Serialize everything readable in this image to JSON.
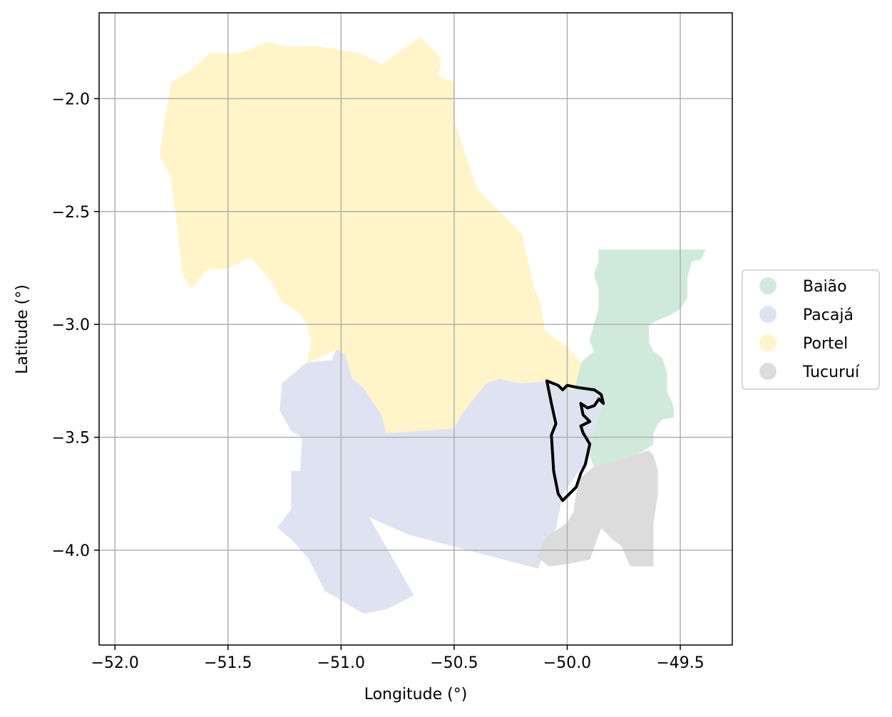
{
  "chart_data": {
    "type": "map",
    "xlabel": "Longitude (°)",
    "ylabel": "Latitude (°)",
    "xlim": [
      -52.07,
      -49.27
    ],
    "ylim": [
      -4.42,
      -1.62
    ],
    "x_ticks": [
      -52.0,
      -51.5,
      -51.0,
      -50.5,
      -50.0,
      -49.5
    ],
    "x_tick_labels": [
      "−52.0",
      "−51.5",
      "−51.0",
      "−50.5",
      "−50.0",
      "−49.5"
    ],
    "y_ticks": [
      -2.0,
      -2.5,
      -3.0,
      -3.5,
      -4.0
    ],
    "y_tick_labels": [
      "−2.0",
      "−2.5",
      "−3.0",
      "−3.5",
      "−4.0"
    ],
    "grid": true,
    "legend_position": "right",
    "regions": [
      {
        "name": "Baião",
        "color": "#cfeadb",
        "polygon": [
          [
            -49.86,
            -2.67
          ],
          [
            -49.39,
            -2.67
          ],
          [
            -49.41,
            -2.71
          ],
          [
            -49.45,
            -2.72
          ],
          [
            -49.47,
            -2.79
          ],
          [
            -49.47,
            -2.88
          ],
          [
            -49.5,
            -2.93
          ],
          [
            -49.55,
            -2.96
          ],
          [
            -49.6,
            -2.98
          ],
          [
            -49.64,
            -3.0
          ],
          [
            -49.64,
            -3.08
          ],
          [
            -49.62,
            -3.12
          ],
          [
            -49.58,
            -3.15
          ],
          [
            -49.56,
            -3.22
          ],
          [
            -49.56,
            -3.3
          ],
          [
            -49.54,
            -3.34
          ],
          [
            -49.53,
            -3.37
          ],
          [
            -49.53,
            -3.41
          ],
          [
            -49.58,
            -3.42
          ],
          [
            -49.6,
            -3.44
          ],
          [
            -49.62,
            -3.48
          ],
          [
            -49.62,
            -3.53
          ],
          [
            -49.65,
            -3.55
          ],
          [
            -49.7,
            -3.58
          ],
          [
            -49.8,
            -3.61
          ],
          [
            -49.88,
            -3.63
          ],
          [
            -49.9,
            -3.58
          ],
          [
            -49.88,
            -3.45
          ],
          [
            -49.84,
            -3.35
          ],
          [
            -49.87,
            -3.31
          ],
          [
            -49.97,
            -3.29
          ],
          [
            -49.94,
            -3.17
          ],
          [
            -49.88,
            -3.12
          ],
          [
            -49.9,
            -3.07
          ],
          [
            -49.88,
            -3.0
          ],
          [
            -49.86,
            -2.93
          ],
          [
            -49.86,
            -2.84
          ],
          [
            -49.88,
            -2.78
          ],
          [
            -49.86,
            -2.72
          ]
        ]
      },
      {
        "name": "Pacajá",
        "color": "#dfe3f1",
        "polygon": [
          [
            -51.04,
            -3.16
          ],
          [
            -51.02,
            -3.11
          ],
          [
            -50.98,
            -3.13
          ],
          [
            -50.95,
            -3.24
          ],
          [
            -50.9,
            -3.28
          ],
          [
            -50.86,
            -3.34
          ],
          [
            -50.82,
            -3.4
          ],
          [
            -50.8,
            -3.48
          ],
          [
            -50.5,
            -3.46
          ],
          [
            -50.47,
            -3.4
          ],
          [
            -50.43,
            -3.35
          ],
          [
            -50.36,
            -3.26
          ],
          [
            -50.3,
            -3.24
          ],
          [
            -50.2,
            -3.26
          ],
          [
            -50.1,
            -3.25
          ],
          [
            -49.97,
            -3.29
          ],
          [
            -49.87,
            -3.31
          ],
          [
            -49.84,
            -3.35
          ],
          [
            -49.88,
            -3.45
          ],
          [
            -49.9,
            -3.58
          ],
          [
            -49.95,
            -3.65
          ],
          [
            -50.02,
            -3.75
          ],
          [
            -50.05,
            -3.9
          ],
          [
            -50.1,
            -4.0
          ],
          [
            -50.13,
            -4.08
          ],
          [
            -50.7,
            -3.93
          ],
          [
            -50.88,
            -3.85
          ],
          [
            -50.68,
            -4.2
          ],
          [
            -50.8,
            -4.26
          ],
          [
            -50.9,
            -4.28
          ],
          [
            -51.0,
            -4.22
          ],
          [
            -51.07,
            -4.18
          ],
          [
            -51.14,
            -4.04
          ],
          [
            -51.22,
            -3.95
          ],
          [
            -51.28,
            -3.9
          ],
          [
            -51.22,
            -3.82
          ],
          [
            -51.22,
            -3.65
          ],
          [
            -51.18,
            -3.65
          ],
          [
            -51.17,
            -3.5
          ],
          [
            -51.22,
            -3.47
          ],
          [
            -51.27,
            -3.38
          ],
          [
            -51.26,
            -3.26
          ],
          [
            -51.21,
            -3.22
          ],
          [
            -51.15,
            -3.17
          ]
        ]
      },
      {
        "name": "Portel",
        "color": "#fff5c9",
        "polygon": [
          [
            -51.25,
            -1.77
          ],
          [
            -51.32,
            -1.75
          ],
          [
            -51.45,
            -1.8
          ],
          [
            -51.58,
            -1.8
          ],
          [
            -51.67,
            -1.88
          ],
          [
            -51.75,
            -1.93
          ],
          [
            -51.78,
            -2.1
          ],
          [
            -51.8,
            -2.25
          ],
          [
            -51.75,
            -2.35
          ],
          [
            -51.72,
            -2.6
          ],
          [
            -51.7,
            -2.78
          ],
          [
            -51.66,
            -2.84
          ],
          [
            -51.6,
            -2.76
          ],
          [
            -51.5,
            -2.75
          ],
          [
            -51.4,
            -2.7
          ],
          [
            -51.3,
            -2.82
          ],
          [
            -51.26,
            -2.9
          ],
          [
            -51.18,
            -2.95
          ],
          [
            -51.15,
            -3.0
          ],
          [
            -51.13,
            -3.08
          ],
          [
            -51.15,
            -3.17
          ],
          [
            -51.02,
            -3.11
          ],
          [
            -50.98,
            -3.13
          ],
          [
            -50.95,
            -3.24
          ],
          [
            -50.9,
            -3.28
          ],
          [
            -50.86,
            -3.34
          ],
          [
            -50.82,
            -3.4
          ],
          [
            -50.8,
            -3.48
          ],
          [
            -50.5,
            -3.46
          ],
          [
            -50.47,
            -3.4
          ],
          [
            -50.43,
            -3.35
          ],
          [
            -50.36,
            -3.26
          ],
          [
            -50.3,
            -3.24
          ],
          [
            -50.2,
            -3.26
          ],
          [
            -50.1,
            -3.25
          ],
          [
            -49.97,
            -3.29
          ],
          [
            -49.94,
            -3.17
          ],
          [
            -50.0,
            -3.1
          ],
          [
            -50.1,
            -3.03
          ],
          [
            -50.12,
            -2.9
          ],
          [
            -50.15,
            -2.83
          ],
          [
            -50.18,
            -2.7
          ],
          [
            -50.2,
            -2.6
          ],
          [
            -50.28,
            -2.52
          ],
          [
            -50.4,
            -2.4
          ],
          [
            -50.45,
            -2.25
          ],
          [
            -50.5,
            -2.1
          ],
          [
            -50.5,
            -1.93
          ],
          [
            -50.57,
            -1.9
          ],
          [
            -50.56,
            -1.82
          ],
          [
            -50.65,
            -1.73
          ],
          [
            -50.75,
            -1.8
          ],
          [
            -50.82,
            -1.85
          ],
          [
            -50.92,
            -1.8
          ],
          [
            -51.1,
            -1.77
          ]
        ]
      },
      {
        "name": "Tucuruí",
        "color": "#dcdcdc",
        "polygon": [
          [
            -49.88,
            -3.63
          ],
          [
            -49.8,
            -3.61
          ],
          [
            -49.7,
            -3.58
          ],
          [
            -49.64,
            -3.56
          ],
          [
            -49.62,
            -3.58
          ],
          [
            -49.6,
            -3.65
          ],
          [
            -49.6,
            -3.75
          ],
          [
            -49.62,
            -3.88
          ],
          [
            -49.62,
            -4.07
          ],
          [
            -49.72,
            -4.07
          ],
          [
            -49.76,
            -3.98
          ],
          [
            -49.8,
            -3.95
          ],
          [
            -49.85,
            -3.9
          ],
          [
            -49.88,
            -3.98
          ],
          [
            -49.9,
            -4.04
          ],
          [
            -50.0,
            -4.06
          ],
          [
            -50.08,
            -4.07
          ],
          [
            -50.13,
            -4.03
          ],
          [
            -50.1,
            -3.95
          ],
          [
            -50.0,
            -3.88
          ],
          [
            -49.97,
            -3.83
          ],
          [
            -49.96,
            -3.75
          ],
          [
            -49.94,
            -3.68
          ]
        ]
      }
    ],
    "outline_path": [
      [
        -50.09,
        -3.25
      ],
      [
        -50.04,
        -3.27
      ],
      [
        -50.02,
        -3.29
      ],
      [
        -50.0,
        -3.27
      ],
      [
        -49.95,
        -3.28
      ],
      [
        -49.88,
        -3.29
      ],
      [
        -49.85,
        -3.31
      ],
      [
        -49.84,
        -3.35
      ],
      [
        -49.86,
        -3.33
      ],
      [
        -49.88,
        -3.36
      ],
      [
        -49.91,
        -3.37
      ],
      [
        -49.94,
        -3.35
      ],
      [
        -49.93,
        -3.4
      ],
      [
        -49.9,
        -3.43
      ],
      [
        -49.94,
        -3.45
      ],
      [
        -49.93,
        -3.48
      ],
      [
        -49.9,
        -3.53
      ],
      [
        -49.92,
        -3.62
      ],
      [
        -49.94,
        -3.66
      ],
      [
        -49.96,
        -3.72
      ],
      [
        -50.02,
        -3.78
      ],
      [
        -50.04,
        -3.75
      ],
      [
        -50.06,
        -3.65
      ],
      [
        -50.07,
        -3.49
      ],
      [
        -50.05,
        -3.44
      ],
      [
        -50.07,
        -3.35
      ],
      [
        -50.09,
        -3.25
      ]
    ],
    "legend": [
      {
        "label": "Baião",
        "color": "#cfeadb"
      },
      {
        "label": "Pacajá",
        "color": "#dfe3f1"
      },
      {
        "label": "Portel",
        "color": "#fff5c9"
      },
      {
        "label": "Tucuruí",
        "color": "#dcdcdc"
      }
    ]
  }
}
